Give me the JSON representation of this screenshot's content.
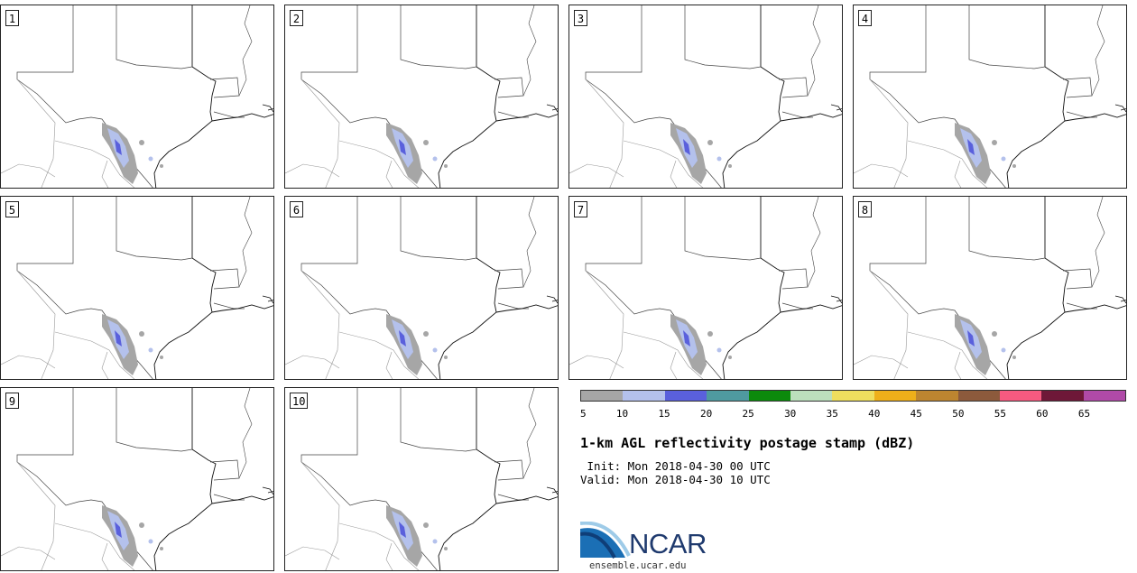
{
  "panels": [
    {
      "label": "1"
    },
    {
      "label": "2"
    },
    {
      "label": "3"
    },
    {
      "label": "4"
    },
    {
      "label": "5"
    },
    {
      "label": "6"
    },
    {
      "label": "7"
    },
    {
      "label": "8"
    },
    {
      "label": "9"
    },
    {
      "label": "10"
    }
  ],
  "colorbar": {
    "ticks": [
      "5",
      "10",
      "15",
      "20",
      "25",
      "30",
      "35",
      "40",
      "45",
      "50",
      "55",
      "60",
      "65"
    ],
    "colors": [
      "#a6a6a6",
      "#b4c1ec",
      "#5a60dc",
      "#4f9aa0",
      "#0c8a0c",
      "#bcdfbd",
      "#eede5e",
      "#eeaf1a",
      "#bd8530",
      "#8c5a3c",
      "#f65a80",
      "#6e1838",
      "#b04aa8"
    ]
  },
  "title": "1-km AGL reflectivity postage stamp (dBZ)",
  "init_line": " Init: Mon 2018-04-30 00 UTC",
  "valid_line": "Valid: Mon 2018-04-30 10 UTC",
  "logo": {
    "text": "NCAR",
    "url": "ensemble.ucar.edu"
  }
}
